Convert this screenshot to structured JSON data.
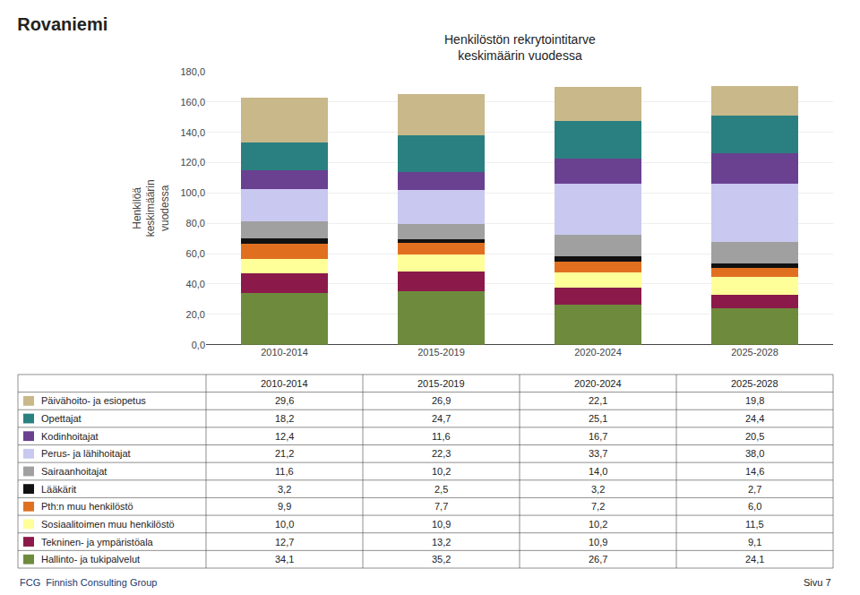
{
  "chart_data": {
    "type": "bar",
    "stacked": true,
    "title": "Rovaniemi",
    "subtitle": "Henkilöstön rekrytointitarve\nkeskimäärin vuodessa",
    "ylabel": "Henkilöä\nkeskimäärin\nvuodessa",
    "categories": [
      "2010-2014",
      "2015-2019",
      "2020-2024",
      "2025-2028"
    ],
    "series": [
      {
        "name": "Hallinto- ja tukipalvelut",
        "color": "#6e8b3d",
        "values": [
          34.1,
          35.2,
          26.7,
          24.1
        ],
        "value_labels": [
          "34,1",
          "35,2",
          "26,7",
          "24,1"
        ]
      },
      {
        "name": "Tekninen- ja ympäristöala",
        "color": "#8b1a4a",
        "values": [
          12.7,
          13.2,
          10.9,
          9.1
        ],
        "value_labels": [
          "12,7",
          "13,2",
          "10,9",
          "9,1"
        ]
      },
      {
        "name": "Sosiaalitoimen muu henkilöstö",
        "color": "#ffff99",
        "values": [
          10.0,
          10.9,
          10.2,
          11.5
        ],
        "value_labels": [
          "10,0",
          "10,9",
          "10,2",
          "11,5"
        ]
      },
      {
        "name": "Pth:n muu henkilöstö",
        "color": "#e07020",
        "values": [
          9.9,
          7.7,
          7.2,
          6.0
        ],
        "value_labels": [
          "9,9",
          "7,7",
          "7,2",
          "6,0"
        ]
      },
      {
        "name": "Lääkärit",
        "color": "#111111",
        "values": [
          3.2,
          2.5,
          3.2,
          2.7
        ],
        "value_labels": [
          "3,2",
          "2,5",
          "3,2",
          "2,7"
        ]
      },
      {
        "name": "Sairaanhoitajat",
        "color": "#a0a0a0",
        "values": [
          11.6,
          10.2,
          14.0,
          14.6
        ],
        "value_labels": [
          "11,6",
          "10,2",
          "14,0",
          "14,6"
        ]
      },
      {
        "name": "Perus- ja lähihoitajat",
        "color": "#c8c8f0",
        "values": [
          21.2,
          22.3,
          33.7,
          38.0
        ],
        "value_labels": [
          "21,2",
          "22,3",
          "33,7",
          "38,0"
        ]
      },
      {
        "name": "Kodinhoitajat",
        "color": "#6a4090",
        "values": [
          12.4,
          11.6,
          16.7,
          20.5
        ],
        "value_labels": [
          "12,4",
          "11,6",
          "16,7",
          "20,5"
        ]
      },
      {
        "name": "Opettajat",
        "color": "#2a8080",
        "values": [
          18.2,
          24.7,
          25.1,
          24.4
        ],
        "value_labels": [
          "18,2",
          "24,7",
          "25,1",
          "24,4"
        ]
      },
      {
        "name": "Päivähoito- ja esiopetus",
        "color": "#c8b88a",
        "values": [
          29.6,
          26.9,
          22.1,
          19.8
        ],
        "value_labels": [
          "29,6",
          "26,9",
          "22,1",
          "19,8"
        ]
      }
    ],
    "ylim": [
      0,
      180
    ],
    "yticks": [
      {
        "value": 0,
        "label": "0,0"
      },
      {
        "value": 20,
        "label": "20,0"
      },
      {
        "value": 40,
        "label": "40,0"
      },
      {
        "value": 60,
        "label": "60,0"
      },
      {
        "value": 80,
        "label": "80,0"
      },
      {
        "value": 100,
        "label": "100,0"
      },
      {
        "value": 120,
        "label": "120,0"
      },
      {
        "value": 140,
        "label": "140,0"
      },
      {
        "value": 160,
        "label": "160,0"
      },
      {
        "value": 180,
        "label": "180,0"
      }
    ],
    "grid": true,
    "annotations": [
      "FCG  Finnish Consulting Group",
      "Sivu 7"
    ]
  }
}
